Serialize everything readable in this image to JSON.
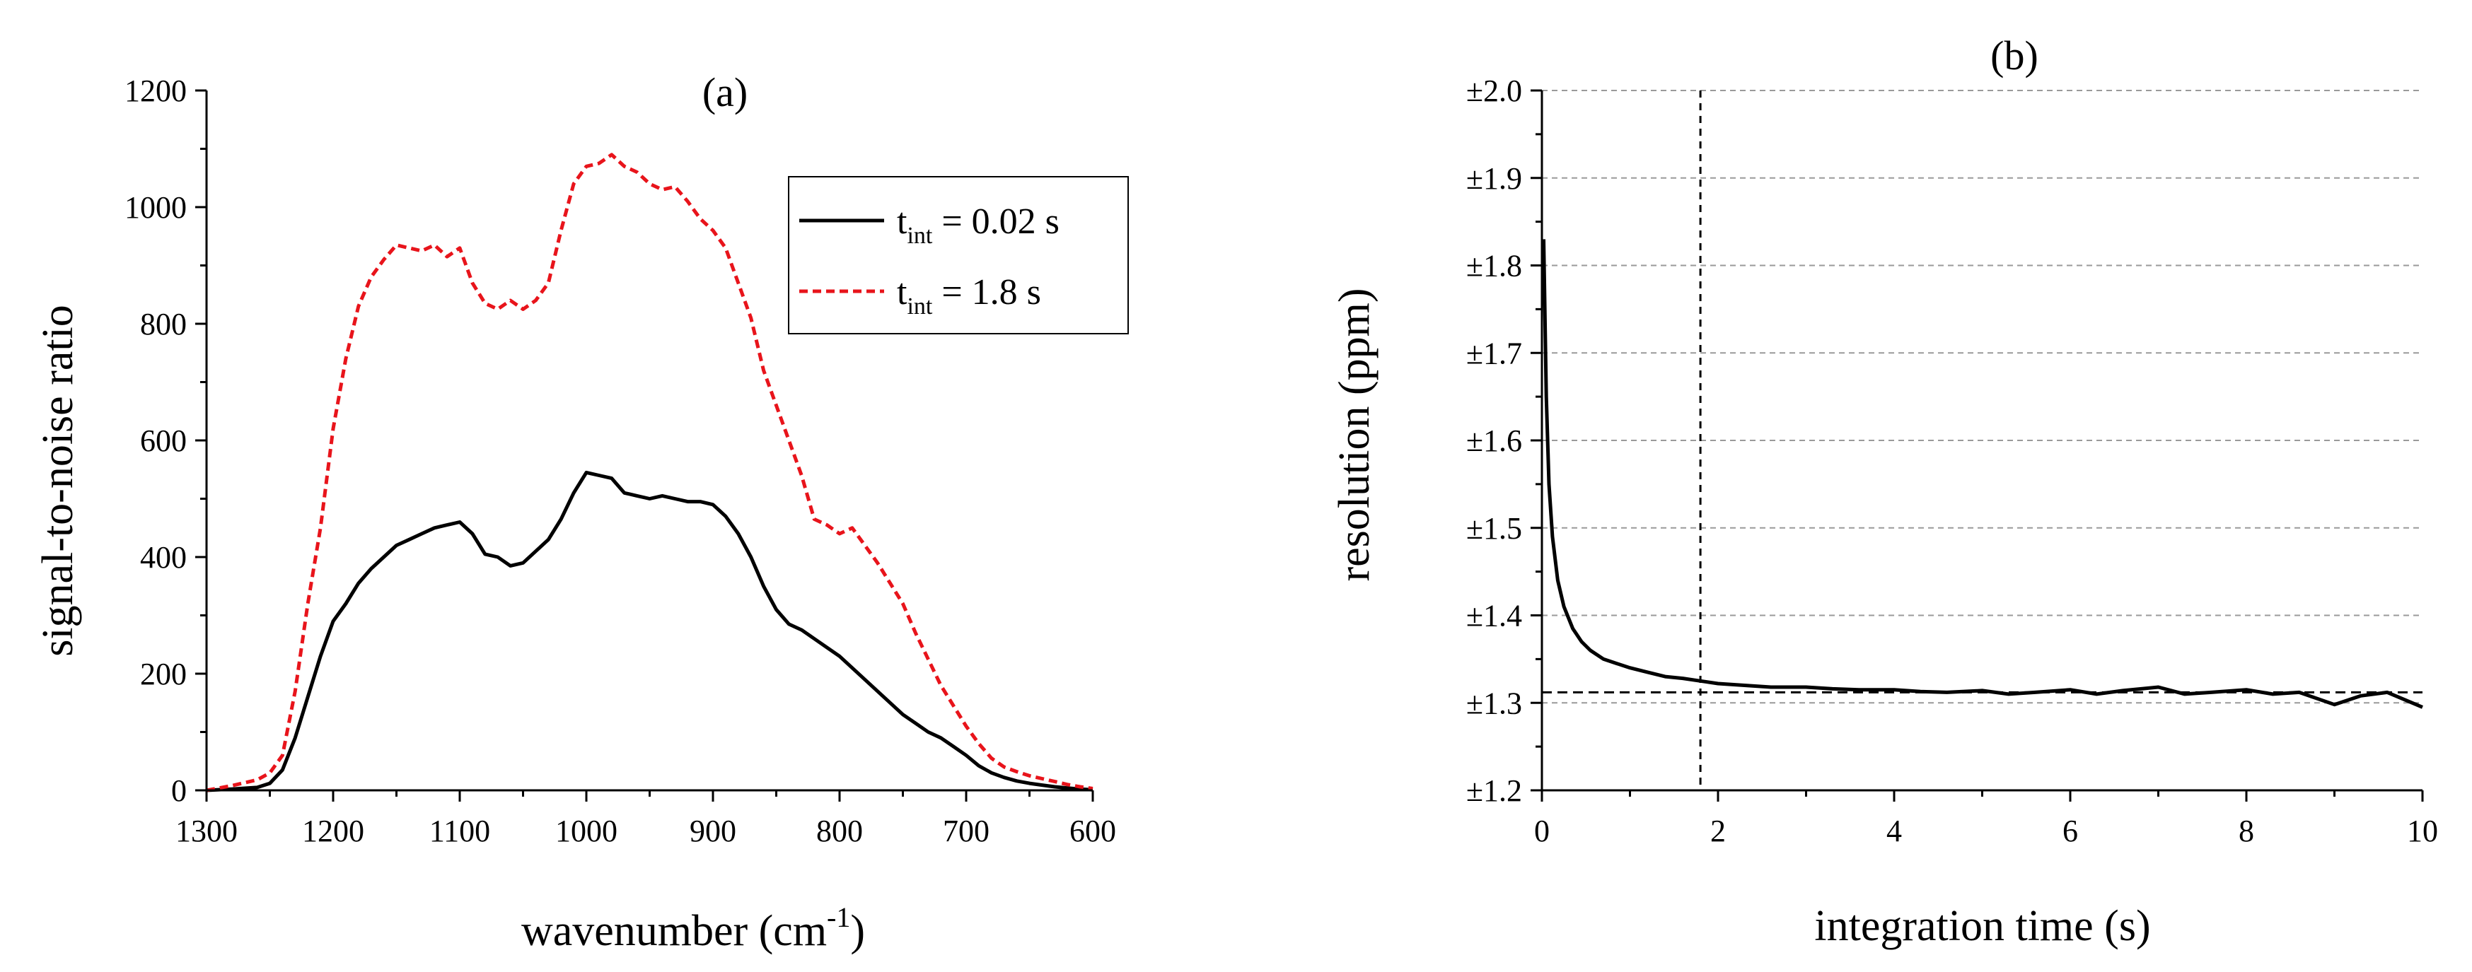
{
  "chart_data": [
    {
      "type": "line",
      "title": "(a)",
      "xlabel": "wavenumber (cm",
      "xlabel_sup": "-1",
      "xlabel_end": ")",
      "ylabel": "signal-to-noise ratio",
      "xlim": [
        1300,
        600
      ],
      "ylim": [
        0,
        1200
      ],
      "xticks": [
        1300,
        1200,
        1100,
        1000,
        900,
        800,
        700,
        600
      ],
      "yticks": [
        0,
        200,
        400,
        600,
        800,
        1000,
        1200
      ],
      "legend": {
        "placement": "top-right",
        "entries": [
          {
            "prefix": "t",
            "sub": "int",
            "suffix": " = 0.02 s",
            "color": "#000000",
            "dash": "solid"
          },
          {
            "prefix": "t",
            "sub": "int",
            "suffix": " = 1.8 s",
            "color": "#e8141b",
            "dash": "dashed"
          }
        ]
      },
      "series": [
        {
          "name": "t_int = 0.02 s",
          "color": "#000000",
          "dash": "solid",
          "x": [
            1300,
            1280,
            1260,
            1250,
            1240,
            1230,
            1220,
            1210,
            1200,
            1190,
            1180,
            1170,
            1160,
            1150,
            1140,
            1130,
            1120,
            1110,
            1100,
            1090,
            1080,
            1070,
            1060,
            1050,
            1040,
            1030,
            1020,
            1010,
            1000,
            990,
            980,
            970,
            960,
            950,
            940,
            930,
            920,
            910,
            900,
            890,
            880,
            870,
            860,
            850,
            840,
            830,
            820,
            810,
            800,
            790,
            780,
            770,
            760,
            750,
            740,
            730,
            720,
            710,
            700,
            690,
            680,
            670,
            660,
            650,
            640,
            630,
            620,
            610,
            600
          ],
          "y": [
            0,
            2,
            5,
            12,
            35,
            90,
            160,
            230,
            290,
            320,
            355,
            380,
            400,
            420,
            430,
            440,
            450,
            455,
            460,
            440,
            405,
            400,
            385,
            390,
            410,
            430,
            465,
            510,
            545,
            540,
            535,
            510,
            505,
            500,
            505,
            500,
            495,
            495,
            490,
            470,
            440,
            400,
            350,
            310,
            285,
            275,
            260,
            245,
            230,
            210,
            190,
            170,
            150,
            130,
            115,
            100,
            90,
            75,
            60,
            42,
            30,
            22,
            16,
            12,
            9,
            6,
            4,
            2,
            1
          ]
        },
        {
          "name": "t_int = 1.8 s",
          "color": "#e8141b",
          "dash": "dashed",
          "x": [
            1300,
            1280,
            1260,
            1250,
            1240,
            1230,
            1220,
            1210,
            1200,
            1190,
            1180,
            1170,
            1160,
            1150,
            1140,
            1130,
            1120,
            1110,
            1100,
            1090,
            1080,
            1070,
            1060,
            1050,
            1040,
            1030,
            1020,
            1010,
            1000,
            990,
            980,
            970,
            960,
            950,
            940,
            930,
            920,
            910,
            900,
            890,
            880,
            870,
            860,
            850,
            840,
            830,
            820,
            810,
            800,
            790,
            780,
            770,
            760,
            750,
            740,
            730,
            720,
            710,
            700,
            690,
            680,
            670,
            660,
            650,
            640,
            630,
            620,
            610,
            600
          ],
          "y": [
            0,
            8,
            18,
            30,
            60,
            170,
            320,
            450,
            620,
            740,
            830,
            880,
            910,
            935,
            930,
            925,
            935,
            915,
            930,
            870,
            835,
            825,
            840,
            825,
            840,
            870,
            960,
            1040,
            1070,
            1075,
            1090,
            1070,
            1060,
            1040,
            1030,
            1035,
            1010,
            980,
            960,
            930,
            870,
            810,
            720,
            660,
            600,
            540,
            465,
            455,
            440,
            450,
            420,
            390,
            355,
            320,
            270,
            225,
            180,
            145,
            110,
            80,
            55,
            40,
            32,
            25,
            20,
            15,
            10,
            6,
            3
          ]
        }
      ]
    },
    {
      "type": "line",
      "title": "(b)",
      "xlabel": "integration time (s)",
      "ylabel": "resolution (ppm)",
      "xlim": [
        0,
        10
      ],
      "ylim": [
        1.2,
        2.0
      ],
      "xticks": [
        0,
        2,
        4,
        6,
        8,
        10
      ],
      "yticks": [
        1.2,
        1.3,
        1.4,
        1.5,
        1.6,
        1.7,
        1.8,
        1.9,
        2.0
      ],
      "ytick_labels": [
        "±1.2",
        "±1.3",
        "±1.4",
        "±1.5",
        "±1.6",
        "±1.7",
        "±1.8",
        "±1.9",
        "±2.0"
      ],
      "grid": "horizontal dashed",
      "reference_lines": {
        "vertical_x": 1.8,
        "horizontal_y": 1.312
      },
      "series": [
        {
          "name": "resolution",
          "color": "#000000",
          "dash": "solid",
          "x": [
            0.02,
            0.05,
            0.08,
            0.12,
            0.18,
            0.25,
            0.35,
            0.45,
            0.55,
            0.7,
            0.85,
            1.0,
            1.2,
            1.4,
            1.6,
            1.8,
            2.0,
            2.3,
            2.6,
            3.0,
            3.3,
            3.6,
            4.0,
            4.3,
            4.6,
            5.0,
            5.3,
            5.6,
            6.0,
            6.3,
            6.6,
            7.0,
            7.3,
            7.6,
            8.0,
            8.3,
            8.6,
            9.0,
            9.3,
            9.6,
            10.0
          ],
          "y": [
            1.83,
            1.65,
            1.55,
            1.49,
            1.44,
            1.41,
            1.385,
            1.37,
            1.36,
            1.35,
            1.345,
            1.34,
            1.335,
            1.33,
            1.328,
            1.325,
            1.322,
            1.32,
            1.318,
            1.318,
            1.316,
            1.315,
            1.315,
            1.313,
            1.312,
            1.314,
            1.31,
            1.312,
            1.315,
            1.31,
            1.314,
            1.318,
            1.31,
            1.312,
            1.315,
            1.31,
            1.312,
            1.298,
            1.308,
            1.312,
            1.295
          ]
        }
      ]
    }
  ]
}
